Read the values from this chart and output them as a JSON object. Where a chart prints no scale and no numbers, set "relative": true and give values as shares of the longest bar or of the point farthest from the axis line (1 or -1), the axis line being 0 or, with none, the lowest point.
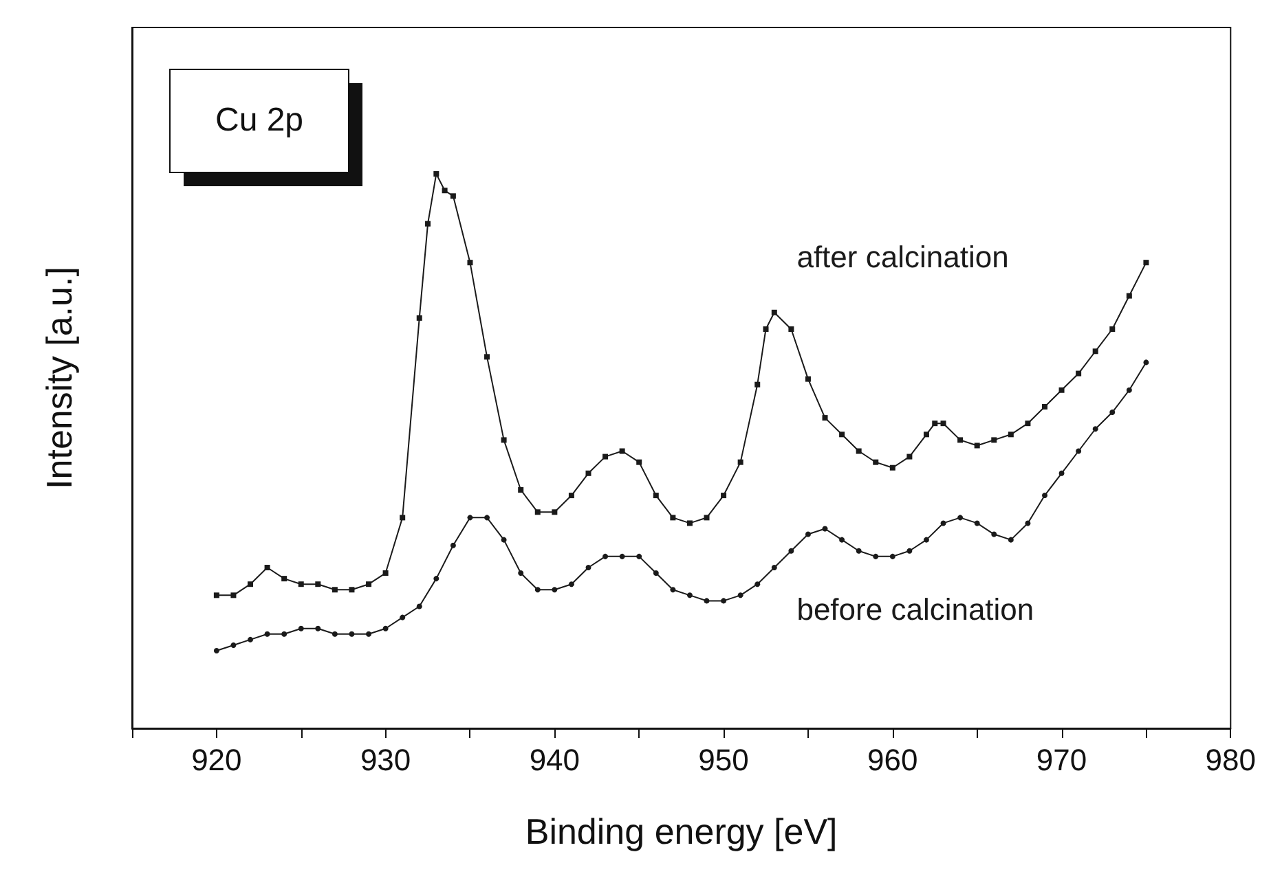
{
  "chart_data": {
    "type": "line",
    "relative": true,
    "xlabel": "Binding energy [eV]",
    "ylabel": "Intensity [a.u.]",
    "annotations": [
      "Cu 2p"
    ],
    "xlim": [
      915,
      980
    ],
    "xticks": [
      {
        "value": 915,
        "label": null
      },
      920,
      {
        "value": 925,
        "label": null
      },
      930,
      {
        "value": 935,
        "label": null
      },
      940,
      {
        "value": 945,
        "label": null
      },
      950,
      {
        "value": 955,
        "label": null
      },
      960,
      {
        "value": 965,
        "label": null
      },
      970,
      {
        "value": 975,
        "label": null
      },
      980
    ],
    "grid": false,
    "legend": false,
    "line_style": "solid",
    "series": [
      {
        "name": "after calcination",
        "color": "#1a1a1a",
        "marker": "square",
        "x": [
          920,
          921,
          922,
          923,
          924,
          925,
          926,
          927,
          928,
          929,
          930,
          931,
          932,
          932.5,
          933,
          933.5,
          934,
          935,
          936,
          937,
          938,
          939,
          940,
          941,
          942,
          943,
          944,
          945,
          946,
          947,
          948,
          949,
          950,
          951,
          952,
          952.5,
          953,
          954,
          955,
          956,
          957,
          958,
          959,
          960,
          961,
          962,
          962.5,
          963,
          964,
          965,
          966,
          967,
          968,
          969,
          970,
          971,
          972,
          973,
          974,
          975
        ],
        "values": [
          0.24,
          0.24,
          0.26,
          0.29,
          0.27,
          0.26,
          0.26,
          0.25,
          0.25,
          0.26,
          0.28,
          0.38,
          0.74,
          0.91,
          1,
          0.97,
          0.96,
          0.84,
          0.67,
          0.52,
          0.43,
          0.39,
          0.39,
          0.42,
          0.46,
          0.49,
          0.5,
          0.48,
          0.42,
          0.38,
          0.37,
          0.38,
          0.42,
          0.48,
          0.62,
          0.72,
          0.75,
          0.72,
          0.63,
          0.56,
          0.53,
          0.5,
          0.48,
          0.47,
          0.49,
          0.53,
          0.55,
          0.55,
          0.52,
          0.51,
          0.52,
          0.53,
          0.55,
          0.58,
          0.61,
          0.64,
          0.68,
          0.72,
          0.78,
          0.84
        ]
      },
      {
        "name": "before calcination",
        "color": "#1a1a1a",
        "marker": "circle",
        "x": [
          920,
          921,
          922,
          923,
          924,
          925,
          926,
          927,
          928,
          929,
          930,
          931,
          932,
          933,
          934,
          935,
          936,
          937,
          938,
          939,
          940,
          941,
          942,
          943,
          944,
          945,
          946,
          947,
          948,
          949,
          950,
          951,
          952,
          953,
          954,
          955,
          956,
          957,
          958,
          959,
          960,
          961,
          962,
          963,
          964,
          965,
          966,
          967,
          968,
          969,
          970,
          971,
          972,
          973,
          974,
          975
        ],
        "values": [
          0.14,
          0.15,
          0.16,
          0.17,
          0.17,
          0.18,
          0.18,
          0.17,
          0.17,
          0.17,
          0.18,
          0.2,
          0.22,
          0.27,
          0.33,
          0.38,
          0.38,
          0.34,
          0.28,
          0.25,
          0.25,
          0.26,
          0.29,
          0.31,
          0.31,
          0.31,
          0.28,
          0.25,
          0.24,
          0.23,
          0.23,
          0.24,
          0.26,
          0.29,
          0.32,
          0.35,
          0.36,
          0.34,
          0.32,
          0.31,
          0.31,
          0.32,
          0.34,
          0.37,
          0.38,
          0.37,
          0.35,
          0.34,
          0.37,
          0.42,
          0.46,
          0.5,
          0.54,
          0.57,
          0.61,
          0.66
        ]
      }
    ]
  }
}
